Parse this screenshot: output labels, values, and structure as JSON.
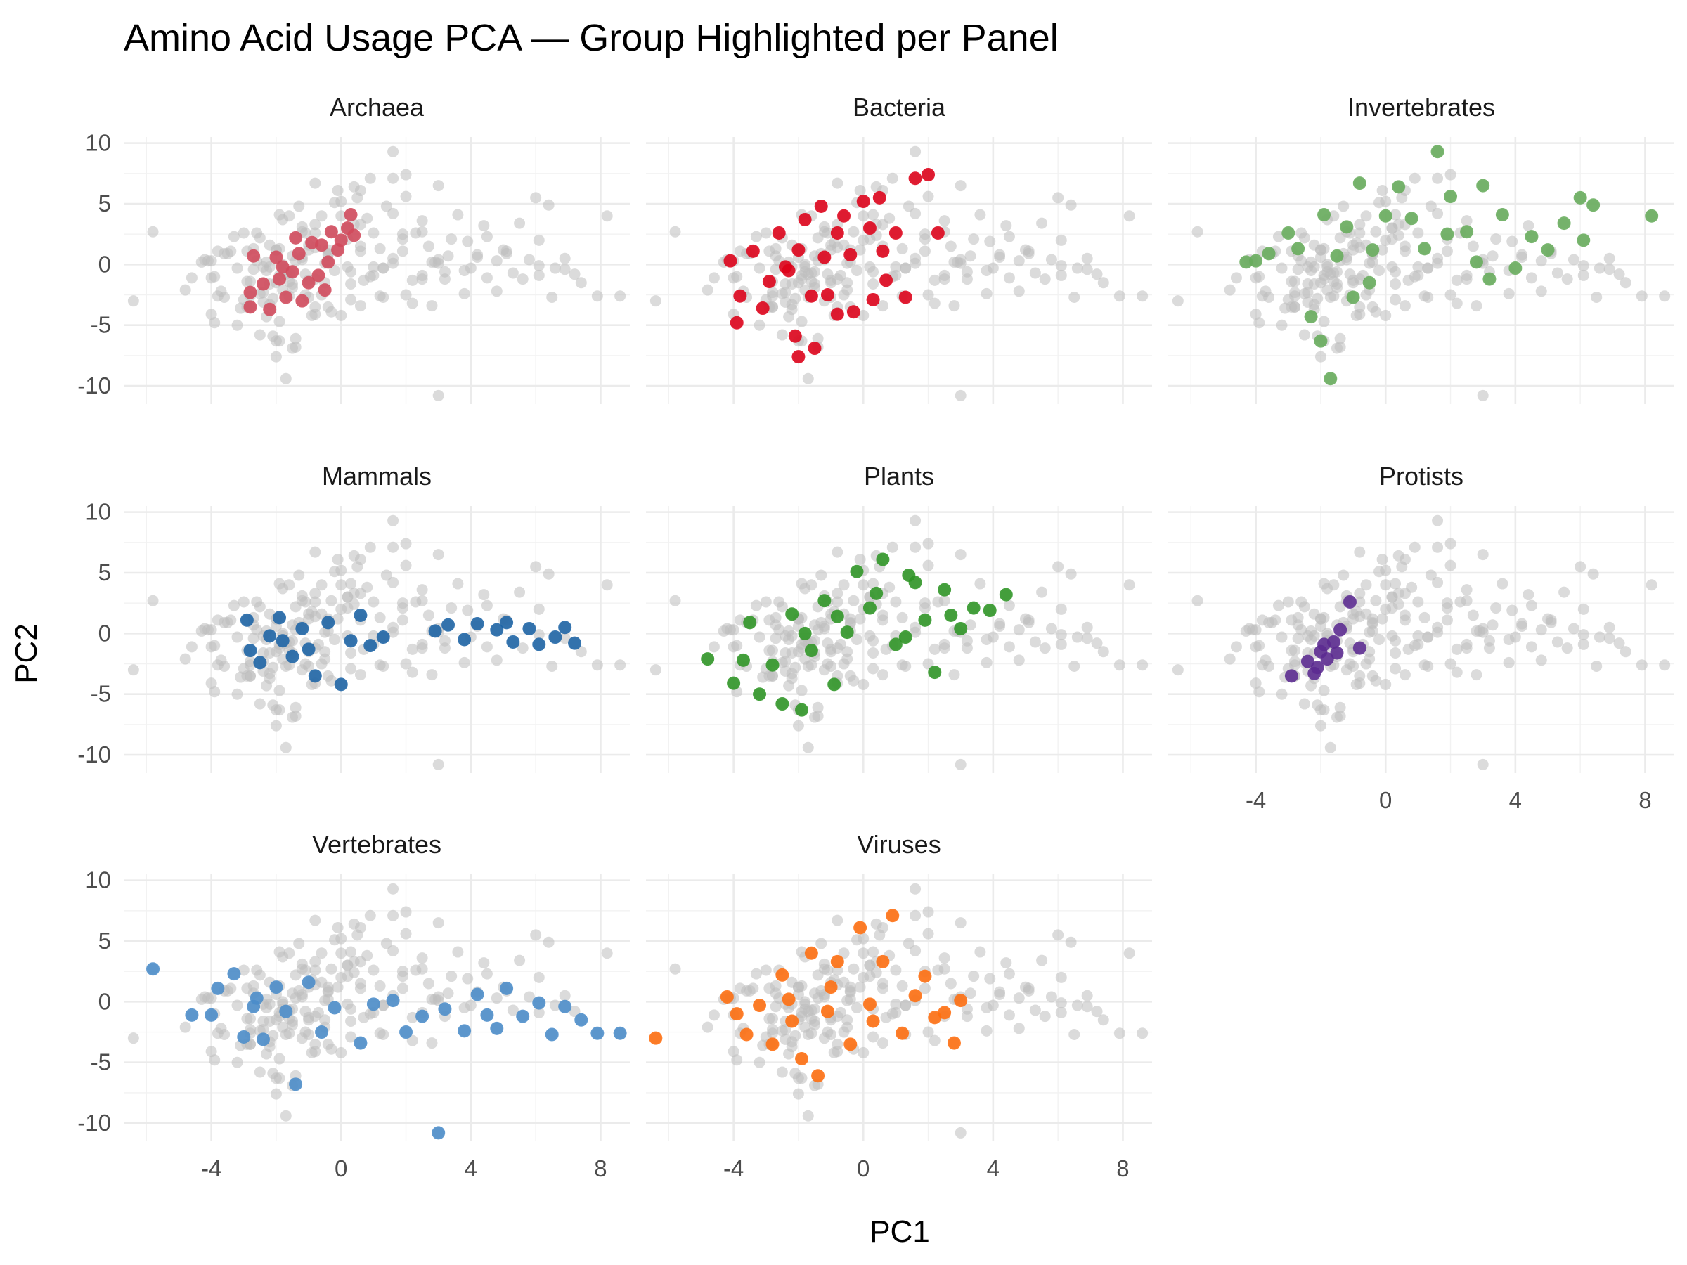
{
  "chart_data": {
    "type": "scatter",
    "title": "Amino Acid Usage PCA — Group Highlighted per Panel",
    "xlabel": "PC1",
    "ylabel": "PC2",
    "xlim": [
      -6.7,
      8.9
    ],
    "ylim": [
      -11.5,
      10.5
    ],
    "x_ticks": [
      -4,
      0,
      4,
      8
    ],
    "y_ticks": [
      -10,
      -5,
      0,
      5,
      10
    ],
    "x_tick_labels": [
      "-4",
      "0",
      "4",
      "8"
    ],
    "y_tick_labels": [
      "-10",
      "-5",
      "0",
      "5",
      "10"
    ],
    "grid": true,
    "legend": "none",
    "background_color": "#bebebe",
    "panels": [
      {
        "name": "Archaea",
        "color": "#d1495b",
        "points": [
          [
            -2.7,
            0.7
          ],
          [
            -2.8,
            -2.3
          ],
          [
            -2.8,
            -3.5
          ],
          [
            -2.4,
            -1.6
          ],
          [
            -2.2,
            -3.7
          ],
          [
            -2.0,
            0.6
          ],
          [
            -1.9,
            -1.2
          ],
          [
            -1.7,
            -2.7
          ],
          [
            -1.5,
            -0.6
          ],
          [
            -1.3,
            0.9
          ],
          [
            -1.2,
            -3.0
          ],
          [
            -1.0,
            -1.5
          ],
          [
            -0.9,
            1.8
          ],
          [
            -0.6,
            1.6
          ],
          [
            -0.4,
            0.2
          ],
          [
            -0.3,
            2.7
          ],
          [
            0.0,
            2.0
          ],
          [
            0.2,
            3.0
          ],
          [
            0.3,
            4.1
          ],
          [
            0.4,
            2.4
          ],
          [
            -0.7,
            -0.9
          ],
          [
            -0.5,
            -2.1
          ],
          [
            -0.1,
            1.2
          ],
          [
            -1.4,
            2.2
          ],
          [
            -1.8,
            -0.2
          ]
        ]
      },
      {
        "name": "Bacteria",
        "color": "#de0018",
        "points": [
          [
            -4.1,
            0.3
          ],
          [
            -3.8,
            -2.6
          ],
          [
            -3.9,
            -4.8
          ],
          [
            -3.4,
            1.1
          ],
          [
            -3.1,
            -3.6
          ],
          [
            -2.9,
            -1.4
          ],
          [
            -2.6,
            2.6
          ],
          [
            -2.3,
            -0.5
          ],
          [
            -2.1,
            -5.9
          ],
          [
            -2.0,
            -7.6
          ],
          [
            -1.8,
            3.7
          ],
          [
            -1.5,
            -6.9
          ],
          [
            -1.3,
            4.8
          ],
          [
            -1.1,
            -2.5
          ],
          [
            -0.8,
            -4.1
          ],
          [
            -0.6,
            4.0
          ],
          [
            -0.3,
            -3.9
          ],
          [
            0.0,
            5.2
          ],
          [
            0.3,
            -2.9
          ],
          [
            0.5,
            5.5
          ],
          [
            0.7,
            -1.3
          ],
          [
            1.0,
            2.6
          ],
          [
            1.3,
            -2.7
          ],
          [
            1.6,
            7.1
          ],
          [
            2.0,
            7.4
          ],
          [
            2.3,
            2.6
          ],
          [
            -2.4,
            -0.2
          ],
          [
            -2.0,
            1.2
          ],
          [
            -1.6,
            -2.6
          ],
          [
            -1.2,
            0.6
          ],
          [
            -0.8,
            2.6
          ],
          [
            -0.4,
            0.8
          ],
          [
            0.2,
            3.0
          ],
          [
            0.6,
            1.1
          ]
        ]
      },
      {
        "name": "Invertebrates",
        "color": "#66ac5b",
        "points": [
          [
            -4.3,
            0.2
          ],
          [
            -4.0,
            0.3
          ],
          [
            -3.6,
            0.9
          ],
          [
            -3.0,
            2.6
          ],
          [
            -2.7,
            1.3
          ],
          [
            -2.3,
            -4.3
          ],
          [
            -2.0,
            -6.3
          ],
          [
            -1.7,
            -9.4
          ],
          [
            -1.9,
            4.1
          ],
          [
            -1.5,
            0.7
          ],
          [
            -1.2,
            3.1
          ],
          [
            -0.8,
            6.7
          ],
          [
            -0.4,
            1.2
          ],
          [
            0.0,
            4.0
          ],
          [
            0.4,
            6.4
          ],
          [
            0.8,
            3.8
          ],
          [
            1.2,
            1.3
          ],
          [
            1.6,
            9.3
          ],
          [
            2.0,
            5.6
          ],
          [
            2.5,
            2.7
          ],
          [
            3.0,
            6.5
          ],
          [
            3.2,
            -1.2
          ],
          [
            3.6,
            4.1
          ],
          [
            4.0,
            -0.3
          ],
          [
            4.5,
            2.3
          ],
          [
            5.0,
            1.2
          ],
          [
            5.5,
            3.4
          ],
          [
            6.0,
            5.5
          ],
          [
            6.4,
            4.9
          ],
          [
            6.1,
            2.0
          ],
          [
            8.2,
            4.0
          ],
          [
            2.8,
            0.2
          ],
          [
            1.9,
            2.5
          ],
          [
            -0.5,
            -1.5
          ],
          [
            -1.0,
            -2.7
          ]
        ]
      },
      {
        "name": "Mammals",
        "color": "#1b63a5",
        "points": [
          [
            -2.9,
            1.1
          ],
          [
            -2.8,
            -1.4
          ],
          [
            -2.5,
            -2.4
          ],
          [
            -2.2,
            -0.2
          ],
          [
            -1.9,
            1.3
          ],
          [
            -1.5,
            -1.9
          ],
          [
            -1.2,
            0.4
          ],
          [
            -0.8,
            -3.5
          ],
          [
            -0.4,
            0.9
          ],
          [
            0.0,
            -4.2
          ],
          [
            0.3,
            -0.6
          ],
          [
            0.6,
            1.5
          ],
          [
            0.9,
            -1.0
          ],
          [
            1.3,
            -0.3
          ],
          [
            2.9,
            0.2
          ],
          [
            3.3,
            0.7
          ],
          [
            3.8,
            -0.5
          ],
          [
            4.2,
            0.8
          ],
          [
            4.8,
            0.3
          ],
          [
            5.3,
            -0.7
          ],
          [
            5.8,
            0.4
          ],
          [
            6.1,
            -0.9
          ],
          [
            6.6,
            -0.3
          ],
          [
            6.9,
            0.5
          ],
          [
            7.2,
            -0.8
          ],
          [
            -1.8,
            -0.6
          ],
          [
            -1.0,
            -1.3
          ],
          [
            5.1,
            0.9
          ]
        ]
      },
      {
        "name": "Plants",
        "color": "#2e9524",
        "points": [
          [
            -4.8,
            -2.1
          ],
          [
            -4.0,
            -4.1
          ],
          [
            -3.7,
            -2.2
          ],
          [
            -3.5,
            0.9
          ],
          [
            -3.2,
            -5.0
          ],
          [
            -2.8,
            -2.6
          ],
          [
            -2.5,
            -5.8
          ],
          [
            -2.2,
            1.6
          ],
          [
            -1.9,
            -6.3
          ],
          [
            -1.6,
            -1.4
          ],
          [
            -1.2,
            2.7
          ],
          [
            -0.9,
            -4.2
          ],
          [
            -0.5,
            0.1
          ],
          [
            -0.2,
            5.1
          ],
          [
            0.2,
            2.1
          ],
          [
            0.6,
            6.1
          ],
          [
            1.0,
            -0.9
          ],
          [
            1.4,
            4.8
          ],
          [
            1.9,
            1.1
          ],
          [
            2.2,
            -3.2
          ],
          [
            2.5,
            3.6
          ],
          [
            3.0,
            0.4
          ],
          [
            3.4,
            2.1
          ],
          [
            3.9,
            1.9
          ],
          [
            4.4,
            3.2
          ],
          [
            1.3,
            -0.3
          ],
          [
            0.4,
            3.3
          ],
          [
            -0.8,
            1.4
          ],
          [
            -1.8,
            0.0
          ],
          [
            2.7,
            1.5
          ],
          [
            1.6,
            4.2
          ]
        ]
      },
      {
        "name": "Protists",
        "color": "#5b2a91",
        "points": [
          [
            -2.9,
            -3.5
          ],
          [
            -2.4,
            -2.3
          ],
          [
            -2.2,
            -3.3
          ],
          [
            -2.0,
            -1.5
          ],
          [
            -1.8,
            -2.1
          ],
          [
            -1.5,
            -1.6
          ],
          [
            -1.4,
            0.3
          ],
          [
            -1.6,
            -0.7
          ],
          [
            -1.1,
            2.6
          ],
          [
            -0.8,
            -1.2
          ],
          [
            -2.1,
            -2.8
          ],
          [
            -1.9,
            -0.9
          ]
        ]
      },
      {
        "name": "Vertebrates",
        "color": "#4a8cc9",
        "points": [
          [
            -5.8,
            2.7
          ],
          [
            -4.6,
            -1.1
          ],
          [
            -4.0,
            -1.1
          ],
          [
            -3.8,
            1.1
          ],
          [
            -3.3,
            2.3
          ],
          [
            -3.0,
            -2.9
          ],
          [
            -2.7,
            -0.4
          ],
          [
            -2.4,
            -3.1
          ],
          [
            -2.0,
            1.2
          ],
          [
            -1.7,
            -0.8
          ],
          [
            -1.4,
            -6.8
          ],
          [
            -1.0,
            1.6
          ],
          [
            -0.6,
            -2.5
          ],
          [
            -0.2,
            -0.5
          ],
          [
            0.6,
            -3.4
          ],
          [
            1.0,
            -0.2
          ],
          [
            1.6,
            0.1
          ],
          [
            2.0,
            -2.5
          ],
          [
            2.5,
            -1.2
          ],
          [
            3.0,
            -10.8
          ],
          [
            3.2,
            -0.6
          ],
          [
            3.8,
            -2.4
          ],
          [
            4.2,
            0.6
          ],
          [
            4.8,
            -2.2
          ],
          [
            5.1,
            1.1
          ],
          [
            5.6,
            -1.2
          ],
          [
            6.1,
            -0.1
          ],
          [
            6.5,
            -2.7
          ],
          [
            6.9,
            -0.4
          ],
          [
            7.4,
            -1.5
          ],
          [
            7.9,
            -2.6
          ],
          [
            8.6,
            -2.6
          ],
          [
            4.5,
            -1.1
          ],
          [
            -2.6,
            0.3
          ]
        ]
      },
      {
        "name": "Viruses",
        "color": "#ff6d0e",
        "points": [
          [
            -6.4,
            -3.0
          ],
          [
            -4.2,
            0.4
          ],
          [
            -3.9,
            -1.0
          ],
          [
            -3.6,
            -2.7
          ],
          [
            -3.2,
            -0.3
          ],
          [
            -2.8,
            -3.5
          ],
          [
            -2.5,
            2.2
          ],
          [
            -2.2,
            -1.6
          ],
          [
            -1.9,
            -4.7
          ],
          [
            -1.6,
            4.0
          ],
          [
            -1.4,
            -6.1
          ],
          [
            -1.1,
            -0.8
          ],
          [
            -0.8,
            3.3
          ],
          [
            -0.4,
            -3.5
          ],
          [
            -0.1,
            6.1
          ],
          [
            0.3,
            -1.6
          ],
          [
            0.6,
            3.3
          ],
          [
            0.9,
            7.1
          ],
          [
            1.2,
            -2.6
          ],
          [
            1.6,
            0.5
          ],
          [
            1.9,
            2.1
          ],
          [
            2.2,
            -1.3
          ],
          [
            2.5,
            -0.9
          ],
          [
            2.8,
            -3.4
          ],
          [
            3.0,
            0.1
          ],
          [
            -2.3,
            0.2
          ],
          [
            -1.0,
            1.2
          ],
          [
            0.2,
            -0.2
          ]
        ]
      }
    ]
  }
}
